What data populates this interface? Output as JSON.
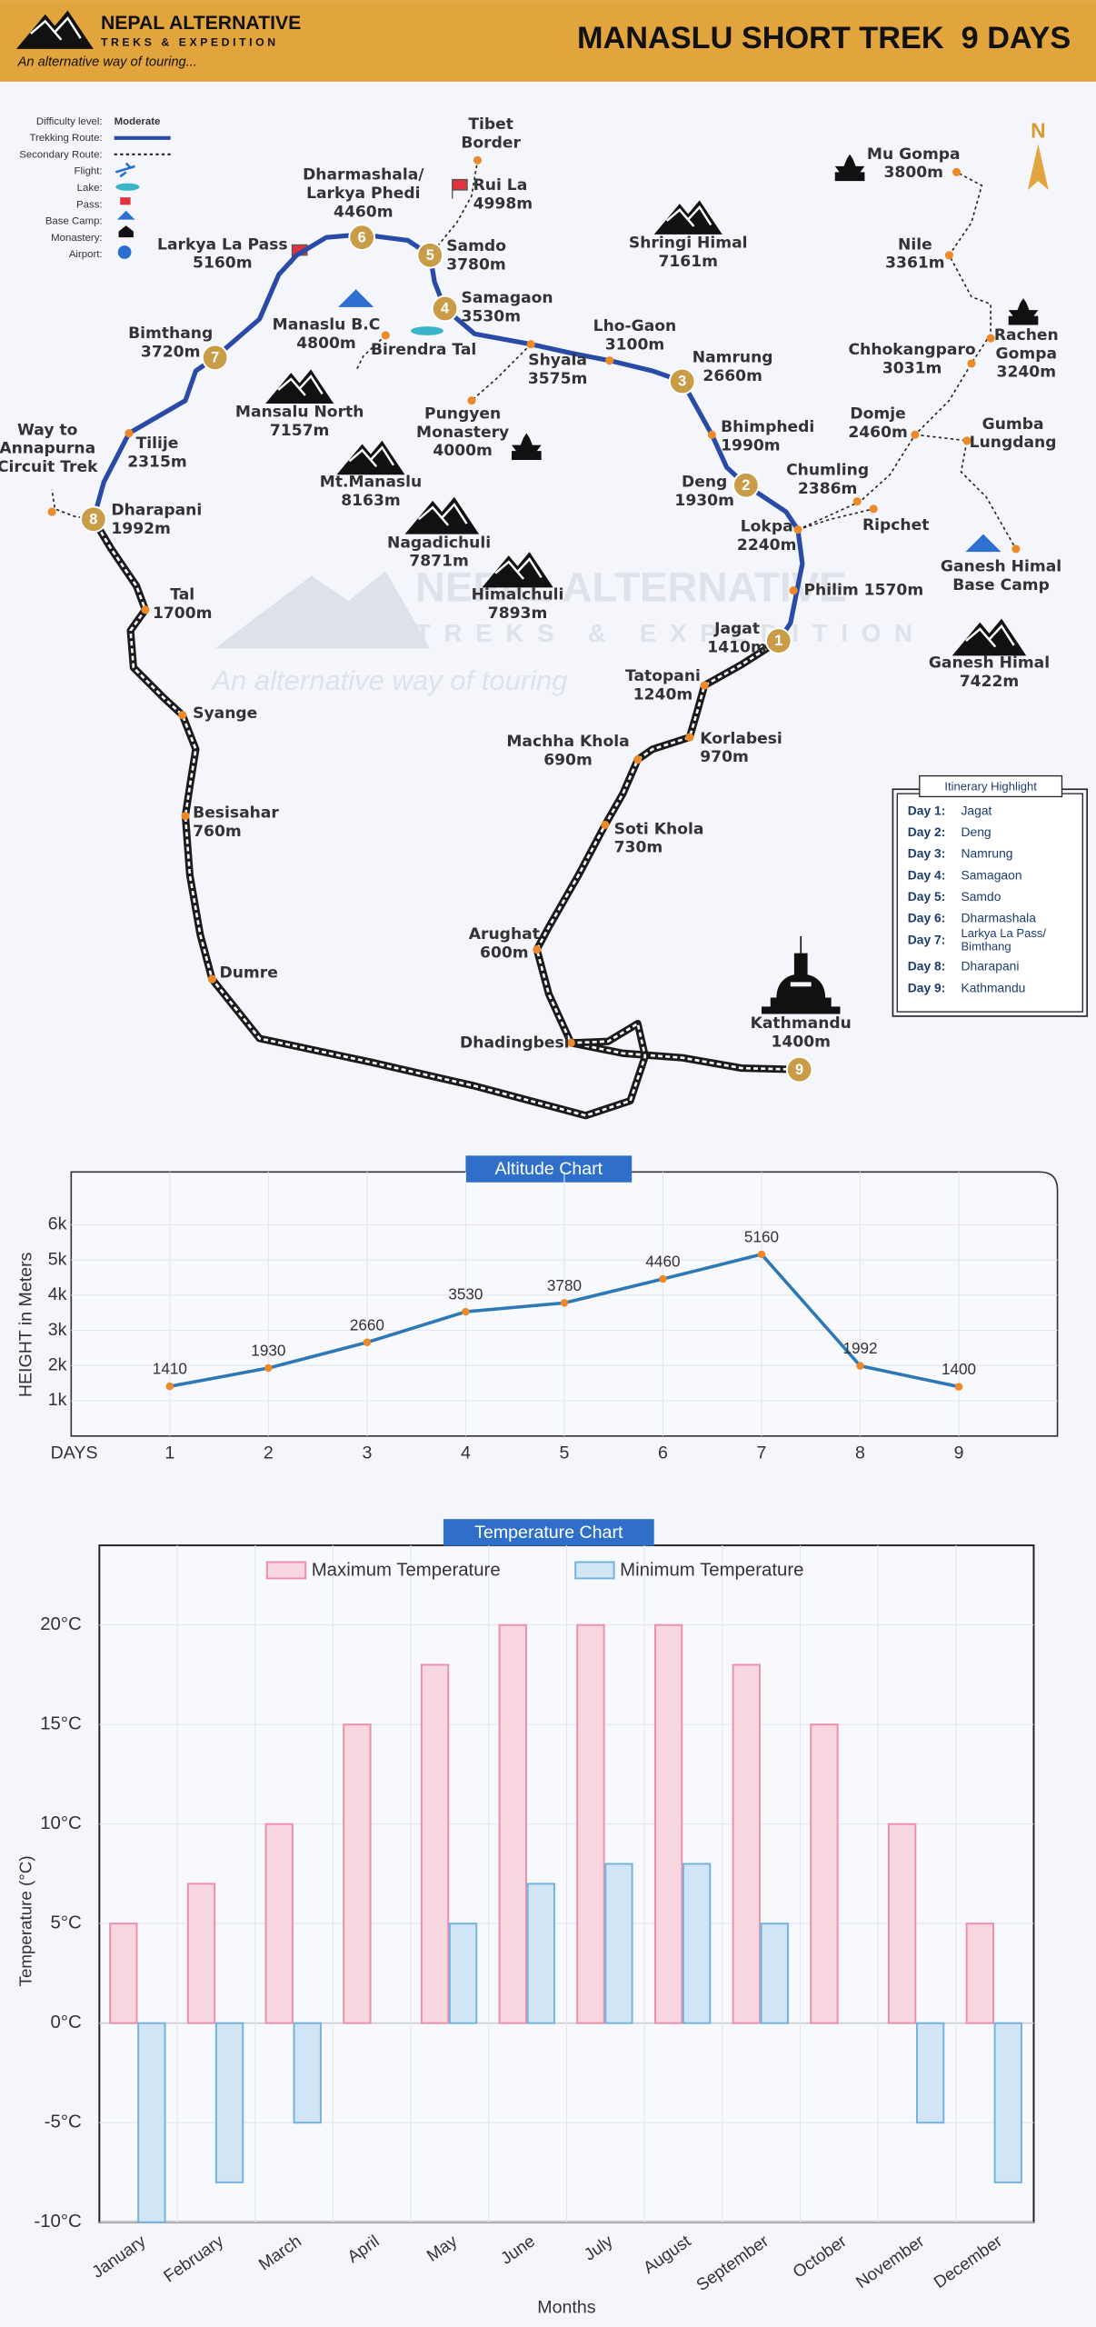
{
  "header": {
    "brand": "NEPAL ALTERNATIVE",
    "brand_sub": "TREKS & EXPEDITION",
    "tagline": "An alternative way of touring...",
    "title": "MANASLU SHORT TREK  9 DAYS"
  },
  "legend": {
    "items": [
      "Difficulty level:",
      "Trekking Route:",
      "Secondary Route:",
      "Flight:",
      "Lake:",
      "Pass:",
      "Base Camp:",
      "Monastery:",
      "Airport:"
    ],
    "difficulty": "Moderate"
  },
  "map": {
    "compass": "N",
    "stops": [
      1,
      2,
      3,
      4,
      5,
      6,
      7,
      8,
      9
    ],
    "watermark": [
      "NEPAL ALTERNATIVE",
      "TREKS & EXPEDITION",
      "An alternative way of touring"
    ],
    "places": [
      {
        "label": [
          "Tibet",
          "Border"
        ]
      },
      {
        "label": [
          "Rui La",
          "4998m"
        ]
      },
      {
        "label": [
          "Dharmashala/",
          "Larkya Phedi",
          "4460m"
        ]
      },
      {
        "label": [
          "Larkya La Pass",
          "5160m"
        ]
      },
      {
        "label": [
          "Samdo",
          "3780m"
        ]
      },
      {
        "label": [
          "Samagaon",
          "3530m"
        ]
      },
      {
        "label": [
          "Manaslu B.C",
          "4800m"
        ]
      },
      {
        "label": [
          "Birendra Tal"
        ]
      },
      {
        "label": [
          "Bimthang",
          "3720m"
        ]
      },
      {
        "label": [
          "Shringi Himal",
          "7161m"
        ]
      },
      {
        "label": [
          "Lho-Gaon",
          "3100m"
        ]
      },
      {
        "label": [
          "Shyala",
          "3575m"
        ]
      },
      {
        "label": [
          "Namrung",
          "2660m"
        ]
      },
      {
        "label": [
          "Pungyen",
          "Monastery",
          "4000m"
        ]
      },
      {
        "label": [
          "Mansalu North",
          "7157m"
        ]
      },
      {
        "label": [
          "Tilije",
          "2315m"
        ]
      },
      {
        "label": [
          "Way to",
          "Annapurna",
          "Circuit Trek"
        ]
      },
      {
        "label": [
          "Dharapani",
          "1992m"
        ]
      },
      {
        "label": [
          "Mt.Manaslu",
          "8163m"
        ]
      },
      {
        "label": [
          "Bhimphedi",
          "1990m"
        ]
      },
      {
        "label": [
          "Deng",
          "1930m"
        ]
      },
      {
        "label": [
          "Nagadichuli",
          "7871m"
        ]
      },
      {
        "label": [
          "Himalchuli",
          "7893m"
        ]
      },
      {
        "label": [
          "Lokpa",
          "2240m"
        ]
      },
      {
        "label": [
          "Chumling",
          "2386m"
        ]
      },
      {
        "label": [
          "Ripchet"
        ]
      },
      {
        "label": [
          "Philim 1570m"
        ]
      },
      {
        "label": [
          "Tal",
          "1700m"
        ]
      },
      {
        "label": [
          "Jagat",
          "1410m"
        ]
      },
      {
        "label": [
          "Tatopani",
          "1240m"
        ]
      },
      {
        "label": [
          "Mu Gompa",
          "3800m"
        ]
      },
      {
        "label": [
          "Nile",
          "3361m"
        ]
      },
      {
        "label": [
          "Rachen",
          "Gompa",
          "3240m"
        ]
      },
      {
        "label": [
          "Chhokangparo",
          "3031m"
        ]
      },
      {
        "label": [
          "Domje",
          "2460m"
        ]
      },
      {
        "label": [
          "Gumba",
          "Lungdang"
        ]
      },
      {
        "label": [
          "Ganesh Himal",
          "Base Camp"
        ]
      },
      {
        "label": [
          "Ganesh Himal",
          "7422m"
        ]
      },
      {
        "label": [
          "Syange"
        ]
      },
      {
        "label": [
          "Machha Khola",
          "690m"
        ]
      },
      {
        "label": [
          "Korlabesi",
          "970m"
        ]
      },
      {
        "label": [
          "Besisahar",
          "760m"
        ]
      },
      {
        "label": [
          "Soti Khola",
          "730m"
        ]
      },
      {
        "label": [
          "Arughat",
          "600m"
        ]
      },
      {
        "label": [
          "Dumre"
        ]
      },
      {
        "label": [
          "Dhadingbesi"
        ]
      },
      {
        "label": [
          "Kathmandu",
          "1400m"
        ]
      }
    ]
  },
  "itinerary": {
    "title": "Itinerary Highlight",
    "days": [
      {
        "day": "Day 1:",
        "place": [
          "Jagat"
        ]
      },
      {
        "day": "Day 2:",
        "place": [
          "Deng"
        ]
      },
      {
        "day": "Day 3:",
        "place": [
          "Namrung"
        ]
      },
      {
        "day": "Day 4:",
        "place": [
          "Samagaon"
        ]
      },
      {
        "day": "Day 5:",
        "place": [
          "Samdo"
        ]
      },
      {
        "day": "Day 6:",
        "place": [
          "Dharmashala"
        ]
      },
      {
        "day": "Day 7:",
        "place": [
          "Larkya La Pass/",
          "Bimthang"
        ]
      },
      {
        "day": "Day 8:",
        "place": [
          "Dharapani"
        ]
      },
      {
        "day": "Day 9:",
        "place": [
          "Kathmandu"
        ]
      }
    ]
  },
  "chart_data": [
    {
      "type": "line",
      "title": "Altitude Chart",
      "y_label": "HEIGHT in Meters",
      "x_label": "DAYS",
      "x": [
        1,
        2,
        3,
        4,
        5,
        6,
        7,
        8,
        9
      ],
      "xlim": [
        0,
        10
      ],
      "xticks": [
        1,
        2,
        3,
        4,
        5,
        6,
        7,
        8,
        9
      ],
      "values": [
        1410,
        1930,
        2660,
        3530,
        3780,
        4460,
        5160,
        1992,
        1400
      ],
      "color": "#2e78b5",
      "ylim": [
        0,
        7500
      ],
      "yticks": [
        {
          "value": 1000,
          "label": "1k"
        },
        {
          "value": 2000,
          "label": "2k"
        },
        {
          "value": 3000,
          "label": "3k"
        },
        {
          "value": 4000,
          "label": "4k"
        },
        {
          "value": 5000,
          "label": "5k"
        },
        {
          "value": 6000,
          "label": "6k"
        }
      ],
      "grid": true,
      "data_labels": true
    },
    {
      "type": "bar",
      "title": "Temperature Chart",
      "x_label": "Months",
      "y_label": "Temperature (°C)",
      "categories": [
        "January",
        "February",
        "March",
        "April",
        "May",
        "June",
        "July",
        "August",
        "September",
        "October",
        "November",
        "December"
      ],
      "series": [
        {
          "name": "Maximum Temperature",
          "color": "#f9d7e1",
          "edge": "#ec8fac",
          "values": [
            5,
            7,
            10,
            15,
            18,
            20,
            20,
            20,
            18,
            15,
            10,
            5
          ]
        },
        {
          "name": "Minimum Temperature",
          "color": "#d2e5f6",
          "edge": "#72b3de",
          "values": [
            -10,
            -8,
            -5,
            0,
            5,
            7,
            8,
            8,
            5,
            0,
            -5,
            -8
          ]
        }
      ],
      "ylim": [
        -10,
        24
      ],
      "yticks": [
        {
          "value": -10,
          "label": "-10°C"
        },
        {
          "value": -5,
          "label": "-5°C"
        },
        {
          "value": 0,
          "label": "0°C"
        },
        {
          "value": 5,
          "label": "5°C"
        },
        {
          "value": 10,
          "label": "10°C"
        },
        {
          "value": 15,
          "label": "15°C"
        },
        {
          "value": 20,
          "label": "20°C"
        }
      ],
      "grid": true,
      "legend": "top"
    }
  ]
}
